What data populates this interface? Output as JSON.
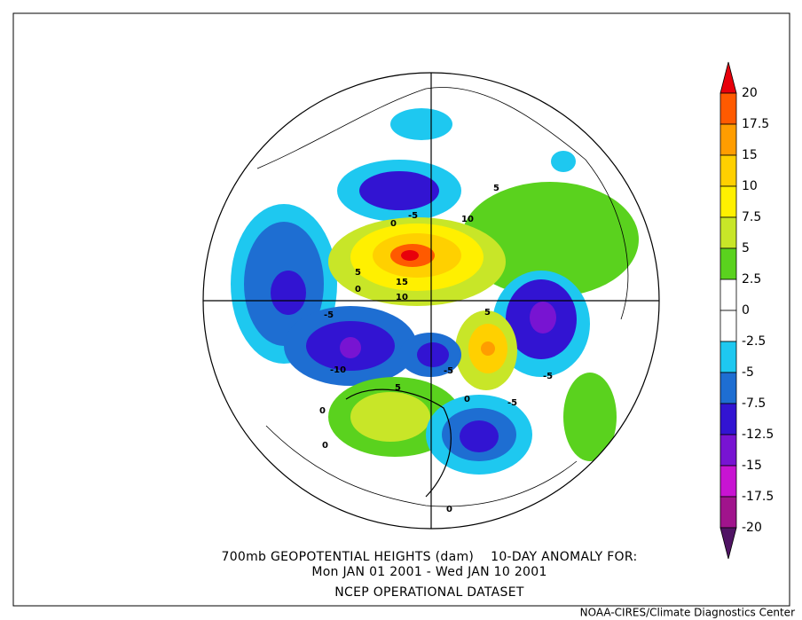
{
  "colorbar": {
    "labels": [
      "20",
      "17.5",
      "15",
      "10",
      "7.5",
      "5",
      "2.5",
      "0",
      "-2.5",
      "-5",
      "-7.5",
      "-12.5",
      "-15",
      "-17.5",
      "-20"
    ],
    "colors": [
      "#e8000b",
      "#ff5a00",
      "#ff9d00",
      "#ffd000",
      "#fff000",
      "#c8e628",
      "#5ad21e",
      "#ffffff",
      "#ffffff",
      "#1ec8f0",
      "#1e6ed2",
      "#3214d2",
      "#7814d2",
      "#c814d2",
      "#a0148c",
      "#501464"
    ]
  },
  "map": {
    "contour_labels": [
      "-5",
      "0",
      "5",
      "10",
      "5",
      "15",
      "10",
      "0",
      "-5",
      "-10",
      "5",
      "0",
      "-5",
      "5",
      "-5",
      "-5",
      "0",
      "0",
      "0"
    ]
  },
  "caption": {
    "line1": "700mb GEOPOTENTIAL HEIGHTS (dam)    10-DAY ANOMALY FOR:",
    "line2": "Mon JAN 01 2001 - Wed JAN 10 2001",
    "line3": "NCEP OPERATIONAL DATASET"
  },
  "footer": "NOAA-CIRES/Climate Diagnostics Center"
}
